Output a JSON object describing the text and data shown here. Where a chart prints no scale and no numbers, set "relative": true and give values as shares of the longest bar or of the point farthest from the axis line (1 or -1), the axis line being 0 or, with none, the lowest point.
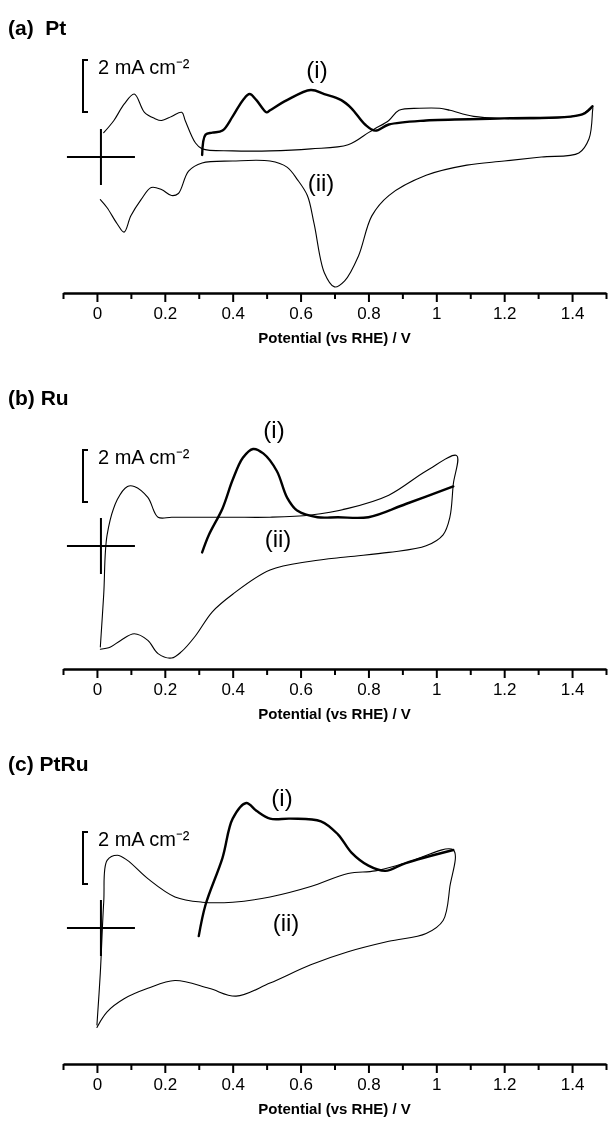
{
  "chart_data": [
    {
      "type": "line",
      "title": "(a)  Pt",
      "xlabel": "Potential (vs RHE) / V",
      "relative": true,
      "xlim": [
        -0.1,
        1.5
      ],
      "xticks": [
        {
          "value": -0.1,
          "label": null
        },
        0,
        {
          "value": 0.1,
          "label": null
        },
        0.2,
        {
          "value": 0.3,
          "label": null
        },
        0.4,
        {
          "value": 0.5,
          "label": null
        },
        0.6,
        {
          "value": 0.7,
          "label": null
        },
        0.8,
        {
          "value": 0.9,
          "label": null
        },
        1,
        {
          "value": 1.1,
          "label": null
        },
        1.2,
        {
          "value": 1.3,
          "label": null
        },
        1.4,
        {
          "value": 1.5,
          "label": null
        }
      ],
      "series": [
        {
          "name": "(i)",
          "color": "#000000",
          "x": [
            0.31,
            0.32,
            0.34,
            0.37,
            0.4,
            0.43,
            0.45,
            0.47,
            0.5,
            0.51,
            0.56,
            0.63,
            0.67,
            0.72,
            0.75,
            0.79,
            0.82,
            0.86,
            0.97,
            1.2,
            1.43,
            1.46
          ],
          "values": [
            0.68,
            0.78,
            0.79,
            0.8,
            0.87,
            0.95,
            0.98,
            0.95,
            0.89,
            0.9,
            0.95,
            1.0,
            0.98,
            0.95,
            0.91,
            0.83,
            0.8,
            0.83,
            0.85,
            0.86,
            0.88,
            0.92
          ]
        },
        {
          "name": "(ii)",
          "color": "#000000",
          "x": [
            0.02,
            0.05,
            0.08,
            0.11,
            0.14,
            0.17,
            0.19,
            0.22,
            0.25,
            0.26,
            0.29,
            0.31,
            0.4,
            0.51,
            0.63,
            0.74,
            0.8,
            0.82,
            0.86,
            0.89,
            0.95,
            1.01,
            1.04,
            1.11,
            1.2,
            1.31,
            1.43,
            1.46,
            1.46,
            1.45,
            1.42,
            1.31,
            1.2,
            1.09,
            0.97,
            0.86,
            0.81,
            0.77,
            0.73,
            0.7,
            0.67,
            0.64,
            0.62,
            0.59,
            0.56,
            0.51,
            0.4,
            0.31,
            0.27,
            0.24,
            0.22,
            0.19,
            0.16,
            0.13,
            0.1,
            0.08,
            0.06,
            0.03,
            0.01
          ],
          "values": [
            0.79,
            0.85,
            0.93,
            0.98,
            0.89,
            0.86,
            0.85,
            0.87,
            0.89,
            0.85,
            0.74,
            0.71,
            0.7,
            0.7,
            0.71,
            0.73,
            0.79,
            0.81,
            0.85,
            0.9,
            0.91,
            0.91,
            0.9,
            0.87,
            0.86,
            0.86,
            0.88,
            0.92,
            0.89,
            0.76,
            0.69,
            0.67,
            0.65,
            0.63,
            0.58,
            0.48,
            0.38,
            0.18,
            0.06,
            0.03,
            0.1,
            0.34,
            0.48,
            0.56,
            0.62,
            0.65,
            0.65,
            0.64,
            0.6,
            0.49,
            0.48,
            0.51,
            0.52,
            0.46,
            0.38,
            0.3,
            0.34,
            0.42,
            0.46
          ]
        }
      ],
      "annotations": [
        "2 mA cm⁻²"
      ]
    },
    {
      "type": "line",
      "title": "(b) Ru",
      "xlabel": "Potential (vs RHE) / V",
      "relative": true,
      "xlim": [
        -0.1,
        1.5
      ],
      "xticks": [
        {
          "value": -0.1,
          "label": null
        },
        0,
        {
          "value": 0.1,
          "label": null
        },
        0.2,
        {
          "value": 0.3,
          "label": null
        },
        0.4,
        {
          "value": 0.5,
          "label": null
        },
        0.6,
        {
          "value": 0.7,
          "label": null
        },
        0.8,
        {
          "value": 0.9,
          "label": null
        },
        1,
        {
          "value": 1.1,
          "label": null
        },
        1.2,
        {
          "value": 1.3,
          "label": null
        },
        1.4,
        {
          "value": 1.5,
          "label": null
        }
      ],
      "series": [
        {
          "name": "(i)",
          "color": "#000000",
          "x": [
            0.31,
            0.33,
            0.37,
            0.4,
            0.43,
            0.46,
            0.49,
            0.53,
            0.56,
            0.59,
            0.65,
            0.71,
            0.8,
            0.91,
            1.05
          ],
          "values": [
            0.53,
            0.61,
            0.73,
            0.86,
            0.96,
            1.0,
            0.98,
            0.9,
            0.78,
            0.72,
            0.69,
            0.69,
            0.69,
            0.75,
            0.83
          ]
        },
        {
          "name": "(ii)",
          "color": "#000000",
          "x": [
            0.01,
            0.02,
            0.03,
            0.06,
            0.09,
            0.11,
            0.15,
            0.18,
            0.22,
            0.29,
            0.31,
            0.4,
            0.51,
            0.63,
            0.74,
            0.86,
            0.97,
            1.06,
            1.05,
            1.04,
            1.02,
            0.97,
            0.86,
            0.74,
            0.63,
            0.51,
            0.4,
            0.34,
            0.29,
            0.25,
            0.22,
            0.18,
            0.15,
            0.11,
            0.07,
            0.04,
            0.01
          ],
          "values": [
            0.1,
            0.34,
            0.61,
            0.77,
            0.83,
            0.83,
            0.78,
            0.69,
            0.69,
            0.69,
            0.69,
            0.69,
            0.69,
            0.7,
            0.73,
            0.79,
            0.9,
            0.97,
            0.84,
            0.69,
            0.61,
            0.56,
            0.53,
            0.51,
            0.49,
            0.45,
            0.34,
            0.26,
            0.15,
            0.08,
            0.05,
            0.07,
            0.13,
            0.16,
            0.13,
            0.1,
            0.09
          ]
        }
      ],
      "annotations": [
        "2 mA cm⁻²"
      ]
    },
    {
      "type": "line",
      "title": "(c) PtRu",
      "xlabel": "Potential (vs RHE) / V",
      "relative": true,
      "xlim": [
        -0.1,
        1.5
      ],
      "xticks": [
        {
          "value": -0.1,
          "label": null
        },
        0,
        {
          "value": 0.1,
          "label": null
        },
        0.2,
        {
          "value": 0.3,
          "label": null
        },
        0.4,
        {
          "value": 0.5,
          "label": null
        },
        0.6,
        {
          "value": 0.7,
          "label": null
        },
        0.8,
        {
          "value": 0.9,
          "label": null
        },
        1,
        {
          "value": 1.1,
          "label": null
        },
        1.2,
        {
          "value": 1.3,
          "label": null
        },
        1.4,
        {
          "value": 1.5,
          "label": null
        }
      ],
      "series": [
        {
          "name": "(i)",
          "color": "#000000",
          "x": [
            0.3,
            0.32,
            0.37,
            0.4,
            0.44,
            0.47,
            0.51,
            0.57,
            0.66,
            0.71,
            0.75,
            0.8,
            0.85,
            0.91,
            1.05
          ],
          "values": [
            0.49,
            0.61,
            0.79,
            0.94,
            1.0,
            0.97,
            0.94,
            0.94,
            0.93,
            0.88,
            0.81,
            0.76,
            0.74,
            0.77,
            0.82
          ]
        },
        {
          "name": "(ii)",
          "color": "#000000",
          "x": [
            0,
            0.01,
            0.02,
            0.03,
            0.06,
            0.09,
            0.15,
            0.23,
            0.31,
            0.4,
            0.51,
            0.63,
            0.74,
            0.82,
            0.91,
            1.05,
            1.04,
            1.02,
            0.97,
            0.86,
            0.74,
            0.63,
            0.51,
            0.41,
            0.33,
            0.23,
            0.15,
            0.08,
            0.03,
            0
          ],
          "values": [
            0.15,
            0.35,
            0.62,
            0.78,
            0.8,
            0.78,
            0.71,
            0.64,
            0.62,
            0.62,
            0.64,
            0.68,
            0.73,
            0.74,
            0.77,
            0.82,
            0.68,
            0.55,
            0.5,
            0.47,
            0.43,
            0.38,
            0.31,
            0.26,
            0.29,
            0.32,
            0.29,
            0.25,
            0.2,
            0.14
          ]
        }
      ],
      "annotations": [
        "2 mA cm⁻²"
      ]
    }
  ]
}
